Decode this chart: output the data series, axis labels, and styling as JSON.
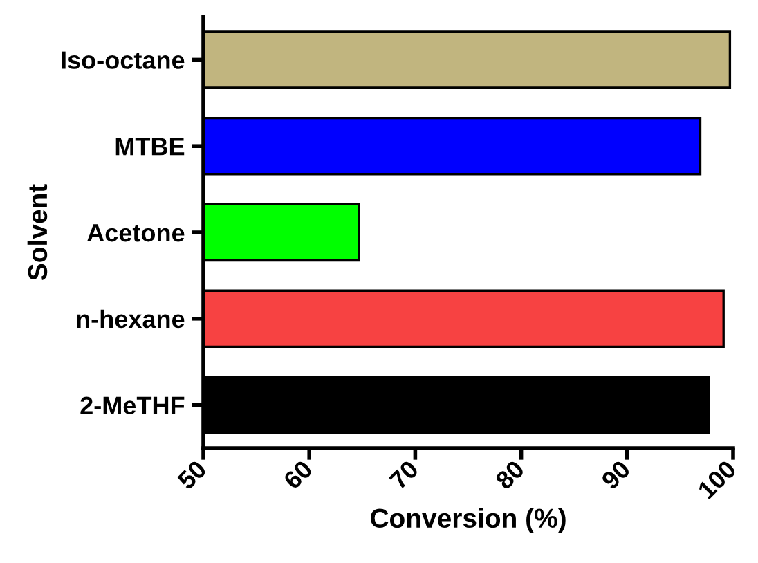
{
  "chart_data": {
    "type": "bar",
    "orientation": "horizontal",
    "categories": [
      "Iso-octane",
      "MTBE",
      "Acetone",
      "n-hexane",
      "2-MeTHF"
    ],
    "values": [
      99.7,
      96.9,
      64.7,
      99.1,
      97.7
    ],
    "colors": [
      "#c1b57f",
      "#0000ff",
      "#00ff00",
      "#f74242",
      "#000000"
    ],
    "xlabel": "Conversion (%)",
    "ylabel": "Solvent",
    "xlim": [
      50,
      100
    ],
    "xticks": [
      50,
      60,
      70,
      80,
      90,
      100
    ],
    "grid": false
  }
}
